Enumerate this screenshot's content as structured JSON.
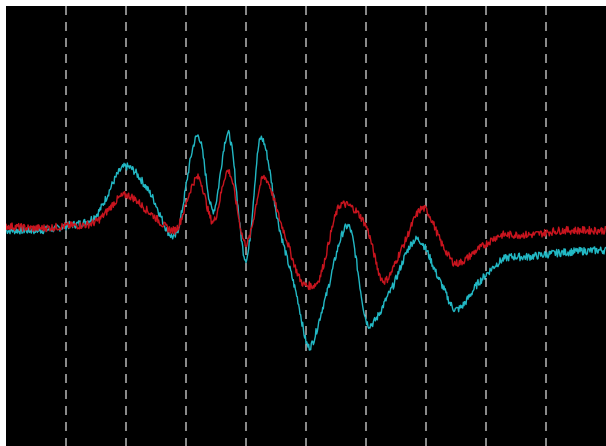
{
  "chart_data": {
    "type": "line",
    "title": "",
    "xlabel": "",
    "ylabel": "",
    "xlim": [
      0,
      10
    ],
    "ylim": [
      -1,
      1
    ],
    "x_gridlines": [
      1,
      2,
      3,
      4,
      5,
      6,
      7,
      8,
      9
    ],
    "grid": "vertical-dashed",
    "background": "#000000",
    "series": [
      {
        "color": "#22b8c4",
        "x": [
          0,
          0.5,
          1.0,
          1.5,
          2.0,
          2.4,
          2.8,
          3.2,
          3.45,
          3.7,
          4.0,
          4.25,
          4.55,
          4.85,
          5.05,
          5.3,
          5.7,
          6.05,
          6.4,
          6.85,
          7.25,
          7.5,
          7.9,
          8.3,
          8.7,
          9.3,
          9.9
        ],
        "y": [
          -0.02,
          -0.02,
          0.0,
          0.05,
          0.27,
          0.15,
          -0.05,
          0.41,
          0.07,
          0.42,
          -0.15,
          0.4,
          0.0,
          -0.32,
          -0.55,
          -0.35,
          0.0,
          -0.45,
          -0.3,
          -0.06,
          -0.26,
          -0.38,
          -0.25,
          -0.15,
          -0.14,
          -0.12,
          -0.11
        ]
      },
      {
        "color": "#c8141e",
        "x": [
          0,
          0.5,
          1.0,
          1.5,
          2.0,
          2.4,
          2.8,
          3.2,
          3.45,
          3.7,
          4.0,
          4.3,
          4.6,
          5.0,
          5.2,
          5.6,
          6.0,
          6.3,
          6.6,
          6.95,
          7.3,
          7.5,
          7.9,
          8.3,
          8.7,
          9.3,
          9.9
        ],
        "y": [
          0.0,
          -0.01,
          0.0,
          0.02,
          0.14,
          0.06,
          -0.02,
          0.22,
          0.02,
          0.25,
          -0.08,
          0.22,
          0.0,
          -0.27,
          -0.25,
          0.1,
          0.0,
          -0.25,
          -0.1,
          0.08,
          -0.1,
          -0.17,
          -0.1,
          -0.04,
          -0.04,
          -0.02,
          -0.02
        ]
      }
    ]
  }
}
